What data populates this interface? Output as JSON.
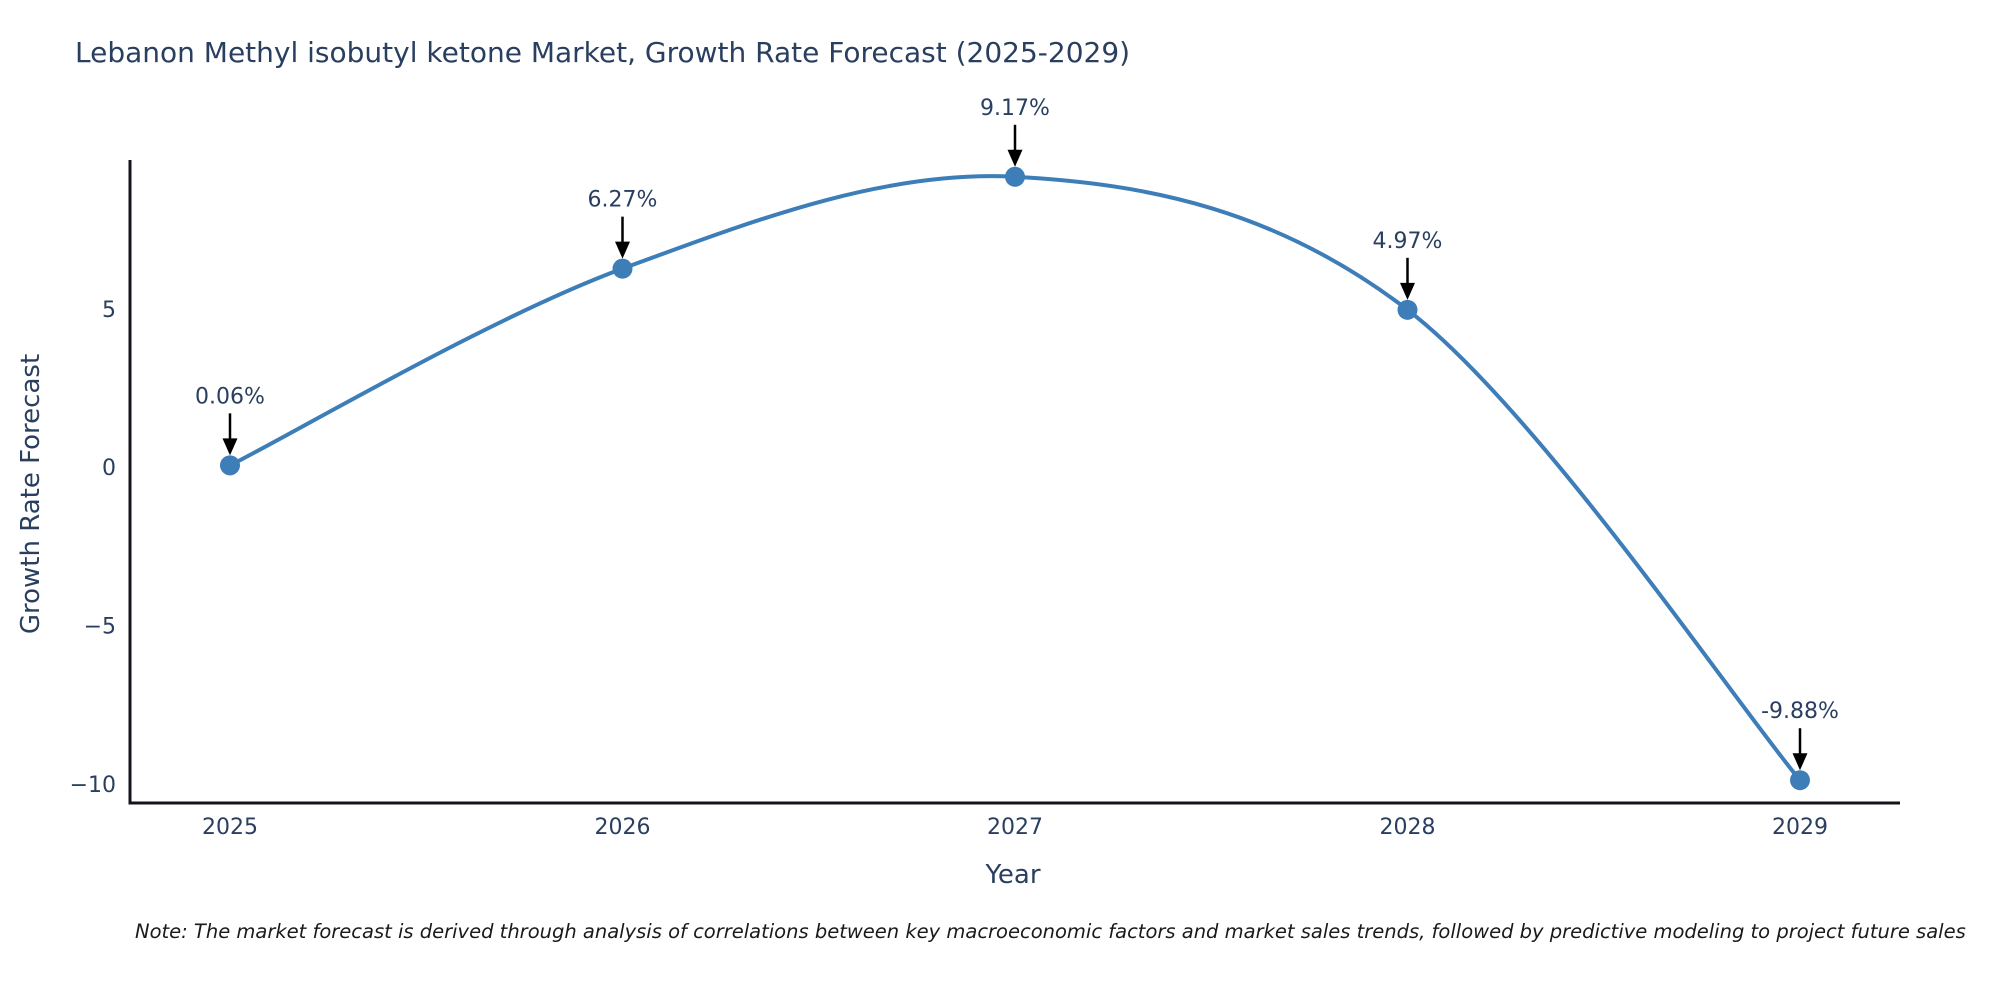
{
  "page": {
    "background": "#ffffff"
  },
  "note": {
    "text": "Note: The market forecast is derived through analysis of correlations between key macroeconomic factors and market sales trends, followed by predictive modeling to project future sales"
  },
  "chart_data": {
    "type": "line",
    "title": "Lebanon Methyl isobutyl ketone Market, Growth Rate Forecast (2025-2029)",
    "xlabel": "Year",
    "ylabel": "Growth Rate Forecast",
    "x": [
      2025,
      2026,
      2027,
      2028,
      2029
    ],
    "x_tick_labels": [
      "2025",
      "2026",
      "2027",
      "2028",
      "2029"
    ],
    "series": [
      {
        "name": "Growth Rate Forecast",
        "values": [
          0.06,
          6.27,
          9.17,
          4.97,
          -9.88
        ]
      }
    ],
    "point_labels": [
      "0.06%",
      "6.27%",
      "9.17%",
      "4.97%",
      "-9.88%"
    ],
    "annotation_style": "arrow-down-to-point",
    "y_ticks": [
      5,
      0,
      -5,
      -10
    ],
    "y_tick_labels": [
      "5",
      "0",
      "−5",
      "−10"
    ],
    "ylim": [
      -10.6,
      9.7
    ],
    "line_shape": "spline",
    "grid": false,
    "legend_position": "none",
    "colors": {
      "line": "#3d7db8",
      "marker": "#3d7db8",
      "axis": "#111418",
      "annotation_arrow": "#000000",
      "text": "#2a3f5f",
      "note_text": "#1a1a1a"
    }
  }
}
